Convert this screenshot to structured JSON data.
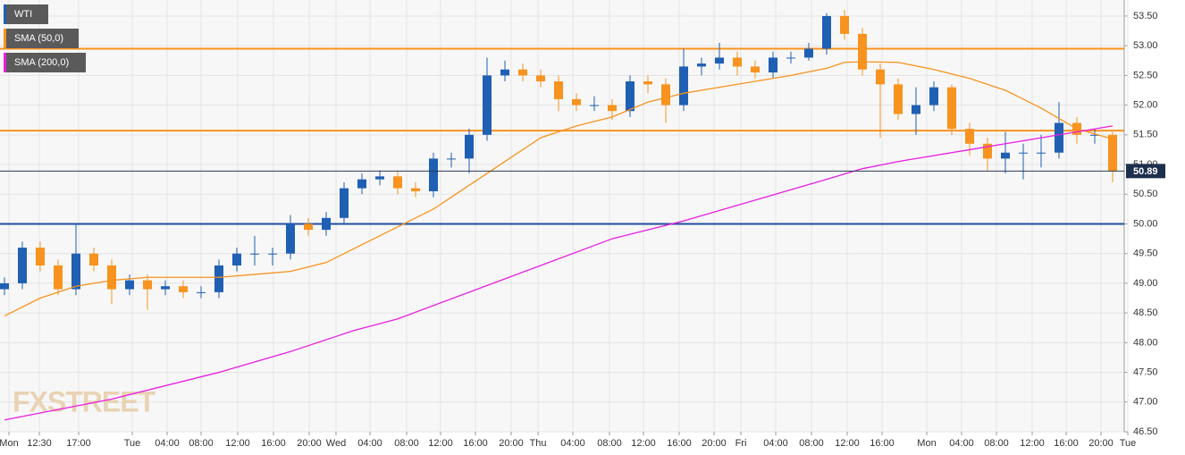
{
  "chart_data": {
    "type": "candlestick",
    "watermark": "FXSTREET",
    "legend": [
      {
        "name": "WTI",
        "color": "#1f5fb4"
      },
      {
        "name": "SMA (50,0)",
        "color": "#f7931e"
      },
      {
        "name": "SMA (200,0)",
        "color": "#e81fe0"
      }
    ],
    "up_color": "#1f5fb4",
    "down_color": "#f7931e",
    "open": [
      48.9,
      49.0,
      49.6,
      49.3,
      48.9,
      49.5,
      49.3,
      48.9,
      49.05,
      48.9,
      48.95,
      48.85,
      48.85,
      49.3,
      49.5,
      49.5,
      49.5,
      50.0,
      49.9,
      50.1,
      50.6,
      50.75,
      50.8,
      50.6,
      50.55,
      51.1,
      51.1,
      51.5,
      52.5,
      52.6,
      52.5,
      52.4,
      52.1,
      52.0,
      52.0,
      51.9,
      52.4,
      52.35,
      52.0,
      52.65,
      52.7,
      52.8,
      52.65,
      52.55,
      52.8,
      52.8,
      52.95,
      53.5,
      53.2,
      52.6,
      52.35,
      51.85,
      52.0,
      52.3,
      51.6,
      51.35,
      51.1,
      51.2,
      51.2,
      51.2,
      51.7,
      51.5,
      51.5
    ],
    "high": [
      49.1,
      49.7,
      49.7,
      49.4,
      50.0,
      49.6,
      49.4,
      49.15,
      49.15,
      49.05,
      49.05,
      48.95,
      49.4,
      49.6,
      49.8,
      49.6,
      50.15,
      50.1,
      50.2,
      50.7,
      50.85,
      50.9,
      50.9,
      50.7,
      51.2,
      51.2,
      51.6,
      52.8,
      52.75,
      52.7,
      52.6,
      52.5,
      52.2,
      52.15,
      52.1,
      52.5,
      52.5,
      52.45,
      52.95,
      52.8,
      53.05,
      52.9,
      52.75,
      52.9,
      52.9,
      53.05,
      53.55,
      53.6,
      53.3,
      52.7,
      52.45,
      52.3,
      52.4,
      52.35,
      51.7,
      51.45,
      51.55,
      51.35,
      51.5,
      52.05,
      51.8,
      51.6,
      51.55
    ],
    "low": [
      48.8,
      48.9,
      49.2,
      48.8,
      48.8,
      49.2,
      48.65,
      48.8,
      48.55,
      48.8,
      48.75,
      48.75,
      48.75,
      49.2,
      49.3,
      49.3,
      49.4,
      49.8,
      49.8,
      50.0,
      50.5,
      50.65,
      50.5,
      50.45,
      50.45,
      50.95,
      50.85,
      51.4,
      52.4,
      52.4,
      52.3,
      51.9,
      51.9,
      51.9,
      51.75,
      51.8,
      52.2,
      51.7,
      51.9,
      52.5,
      52.6,
      52.5,
      52.45,
      52.45,
      52.7,
      52.75,
      52.85,
      53.1,
      52.5,
      51.45,
      51.75,
      51.5,
      51.9,
      51.5,
      51.15,
      50.9,
      50.85,
      50.75,
      50.95,
      51.1,
      51.35,
      51.35,
      50.7
    ],
    "close": [
      49.0,
      49.6,
      49.3,
      48.9,
      49.5,
      49.3,
      48.9,
      49.05,
      48.9,
      48.95,
      48.85,
      48.85,
      49.3,
      49.5,
      49.5,
      49.5,
      50.0,
      49.9,
      50.1,
      50.6,
      50.75,
      50.8,
      50.6,
      50.55,
      51.1,
      51.1,
      51.5,
      52.5,
      52.6,
      52.5,
      52.4,
      52.1,
      52.0,
      52.0,
      51.9,
      52.4,
      52.35,
      52.0,
      52.65,
      52.7,
      52.8,
      52.65,
      52.55,
      52.8,
      52.8,
      52.95,
      53.5,
      53.2,
      52.6,
      52.35,
      51.85,
      52.0,
      52.3,
      51.6,
      51.35,
      51.1,
      51.2,
      51.2,
      51.2,
      51.7,
      51.5,
      51.5,
      50.89
    ],
    "series": [
      {
        "name": "SMA (50,0)",
        "color": "#f7931e",
        "x": [
          0,
          2,
          4,
          6,
          8,
          10,
          12,
          14,
          16,
          18,
          20,
          22,
          24,
          26,
          28,
          30,
          32,
          34,
          36,
          38,
          40,
          42,
          44,
          46,
          47,
          48,
          50,
          52,
          54,
          56,
          58,
          60,
          62
        ],
        "values": [
          48.45,
          48.75,
          48.95,
          49.05,
          49.1,
          49.1,
          49.1,
          49.15,
          49.2,
          49.35,
          49.65,
          49.95,
          50.25,
          50.65,
          51.05,
          51.45,
          51.65,
          51.8,
          52.05,
          52.2,
          52.3,
          52.4,
          52.5,
          52.62,
          52.72,
          52.73,
          52.72,
          52.6,
          52.45,
          52.25,
          51.95,
          51.6,
          51.43
        ]
      },
      {
        "name": "SMA (200,0)",
        "color": "#e81fe0",
        "x": [
          0,
          6,
          12,
          16,
          19.5,
          22,
          26,
          30,
          34,
          38,
          42,
          46,
          48,
          50,
          54,
          58,
          62
        ],
        "values": [
          46.7,
          47.05,
          47.5,
          47.85,
          48.2,
          48.4,
          48.85,
          49.3,
          49.75,
          50.05,
          50.4,
          50.75,
          50.93,
          51.05,
          51.25,
          51.45,
          51.65
        ]
      }
    ],
    "hlines": [
      {
        "value": 52.95,
        "color": "#f7931e"
      },
      {
        "value": 51.57,
        "color": "#f7931e"
      },
      {
        "value": 50.0,
        "color": "#1f4e9c"
      }
    ],
    "last_price": 50.89,
    "grid": true,
    "xlim": [
      -0.25,
      62.65
    ],
    "ylim": [
      46.5,
      53.77
    ],
    "yticks": [
      {
        "value": 53.5,
        "label": "53.50"
      },
      {
        "value": 53.0,
        "label": "53.00"
      },
      {
        "value": 52.5,
        "label": "52.50"
      },
      {
        "value": 52.0,
        "label": "52.00"
      },
      {
        "value": 51.5,
        "label": "51.50"
      },
      {
        "value": 51.0,
        "label": "51.00"
      },
      {
        "value": 50.5,
        "label": "50.50"
      },
      {
        "value": 50.0,
        "label": "50.00"
      },
      {
        "value": 49.5,
        "label": "49.50"
      },
      {
        "value": 49.0,
        "label": "49.00"
      },
      {
        "value": 48.5,
        "label": "48.50"
      },
      {
        "value": 48.0,
        "label": "48.00"
      },
      {
        "value": 47.5,
        "label": "47.50"
      },
      {
        "value": 47.0,
        "label": "47.00"
      },
      {
        "value": 46.5,
        "label": "46.50"
      }
    ],
    "xticks": [
      {
        "value": 0.25,
        "label": "Mon"
      },
      {
        "value": 1.95,
        "label": "12:30"
      },
      {
        "value": 4.15,
        "label": "17:00"
      },
      {
        "value": 7.15,
        "label": "Tue"
      },
      {
        "value": 9.1,
        "label": "04:00"
      },
      {
        "value": 11.0,
        "label": "08:00"
      },
      {
        "value": 13.05,
        "label": "12:00"
      },
      {
        "value": 15.05,
        "label": "16:00"
      },
      {
        "value": 17.05,
        "label": "20:00"
      },
      {
        "value": 18.55,
        "label": "Wed"
      },
      {
        "value": 20.45,
        "label": "04:00"
      },
      {
        "value": 22.5,
        "label": "08:00"
      },
      {
        "value": 24.4,
        "label": "12:00"
      },
      {
        "value": 26.35,
        "label": "16:00"
      },
      {
        "value": 28.35,
        "label": "20:00"
      },
      {
        "value": 29.85,
        "label": "Thu"
      },
      {
        "value": 31.8,
        "label": "04:00"
      },
      {
        "value": 33.85,
        "label": "08:00"
      },
      {
        "value": 35.75,
        "label": "12:00"
      },
      {
        "value": 37.75,
        "label": "16:00"
      },
      {
        "value": 39.7,
        "label": "20:00"
      },
      {
        "value": 41.2,
        "label": "Fri"
      },
      {
        "value": 43.15,
        "label": "04:00"
      },
      {
        "value": 45.15,
        "label": "08:00"
      },
      {
        "value": 47.15,
        "label": "12:00"
      },
      {
        "value": 49.1,
        "label": "16:00"
      },
      {
        "value": 51.6,
        "label": "Mon"
      },
      {
        "value": 53.55,
        "label": "04:00"
      },
      {
        "value": 55.5,
        "label": "08:00"
      },
      {
        "value": 57.5,
        "label": "12:00"
      },
      {
        "value": 59.4,
        "label": "16:00"
      },
      {
        "value": 61.35,
        "label": "20:00"
      },
      {
        "value": 62.85,
        "label": "Tue"
      }
    ]
  }
}
